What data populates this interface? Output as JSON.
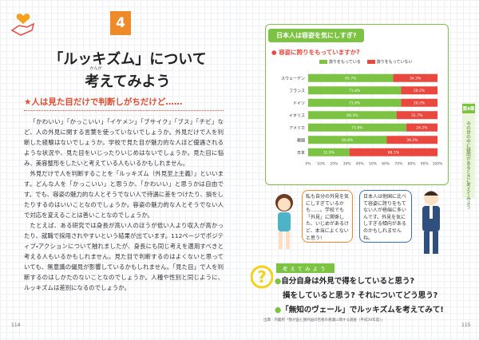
{
  "left_page": {
    "chapter_number": "4",
    "title_line1": "「ルッキズム」について",
    "title_ruby": "かんが",
    "title_line2": "考えてみよう",
    "subtitle": "★人は見た目だけで判断しがちだけど……",
    "paragraphs": [
      "「かわいい」「かっこいい」「イケメン」「ブサイク」「ブス」「チビ」など、人の外見に関する言葉を使っていないでしょうか。外見だけで人を判断した経験はないでしょうか。学校で見た目が魅力的な人ほど優遇されるような状況や、見た目をいじったりいじめはないでしょうか。見た目に悩み、美容整形をしたいと考えている人もいるかもしれません。",
      "外見だけで人を判断することを「ルッキズム（外見至上主義）」といいます。どんな人を「かっこいい」と思うか、「かわいい」と思うかは自由です。でも、容姿の魅力的な人とそうでない人で待遇に差をつけたり、損をしたりするのはいいことなのでしょうか。容姿の魅力的な人とそうでない人で対応を変えることは善いことなのでしょうか。",
      "たとえば、ある研究では身長が高い人のほうが低い人より収入が高かったり、就職で採用されやすいという結果が出ています。112ページでポジティブ・アクションについて触れましたが、身長にも同じ考えを適用すべきと考える人もいるかもしれません。見た目で判断するのはよくないと思っていても、無意識の偏見が影響しているかもしれません。「見た目」で人を判断するのはしかたのないことなのでしょうか。人種や性別と同じように、ルッキズムは差別になるのでしょうか。"
    ],
    "page_number": "114"
  },
  "chart_data": {
    "type": "bar",
    "orientation": "horizontal",
    "stacked": true,
    "title": "日本人は容姿を気にしすぎ?",
    "subtitle": "● 容姿に誇りをもっていますか?",
    "categories": [
      "スウェーデン",
      "フランス",
      "ドイツ",
      "イギリス",
      "アメリカ",
      "韓国",
      "日本"
    ],
    "series": [
      {
        "name": "誇りをもっている",
        "color": "#7cc243",
        "values": [
          65.7,
          71.8,
          71.8,
          68.3,
          75.8,
          60.8,
          31.9
        ],
        "value_labels": [
          "65.7%",
          "71.8%",
          "71.8%",
          "68.3%",
          "75.8%",
          "60.8%",
          "31.9%"
        ]
      },
      {
        "name": "誇りをもっていない",
        "color": "#e9483f",
        "values": [
          34.3,
          28.2,
          28.2,
          31.7,
          24.2,
          39.2,
          68.1
        ],
        "value_labels": [
          "34.3%",
          "28.2%",
          "28.2%",
          "31.7%",
          "24.2%",
          "39.2%",
          "68.1%"
        ]
      }
    ],
    "xlim": [
      0,
      100
    ],
    "xticks": [
      {
        "value": 0,
        "label": "0%"
      },
      {
        "value": 10,
        "label": "10%"
      },
      {
        "value": 20,
        "label": "20%"
      },
      {
        "value": 30,
        "label": "30%"
      },
      {
        "value": 40,
        "label": "40%"
      },
      {
        "value": 50,
        "label": "50%"
      },
      {
        "value": 60,
        "label": "60%"
      },
      {
        "value": 70,
        "label": "70%"
      },
      {
        "value": 80,
        "label": "80%"
      },
      {
        "value": 90,
        "label": "90%"
      },
      {
        "value": 100,
        "label": "100%"
      }
    ],
    "grid": true
  },
  "right_page": {
    "bubble_girl": "私も自分の外見を気にしすぎているかも……。学校でも「外見」に関係した、いじめがあるけど、本当によくないと思う!",
    "bubble_man": "日本人は他国に比べて容姿に誇りをもてない人が極端に多いんです。外見を気にしすぎる傾向があるのかもしれませんね。",
    "think_label": "考えてみよう",
    "think_items": [
      "自分自身は外見で得をしていると思う?",
      "損をしていると思う? それについてどう思う?",
      "「無知のヴェール」でルッキズムを考えてみて!"
    ],
    "source": "出典：内閣府「我が国と諸外国の若者の意識に関する調査（平成30年度）」",
    "page_number": "115",
    "side_tab_chapter": "第8章",
    "side_tab_text": "今の世の中に疑問があるときに考えてみよう"
  }
}
